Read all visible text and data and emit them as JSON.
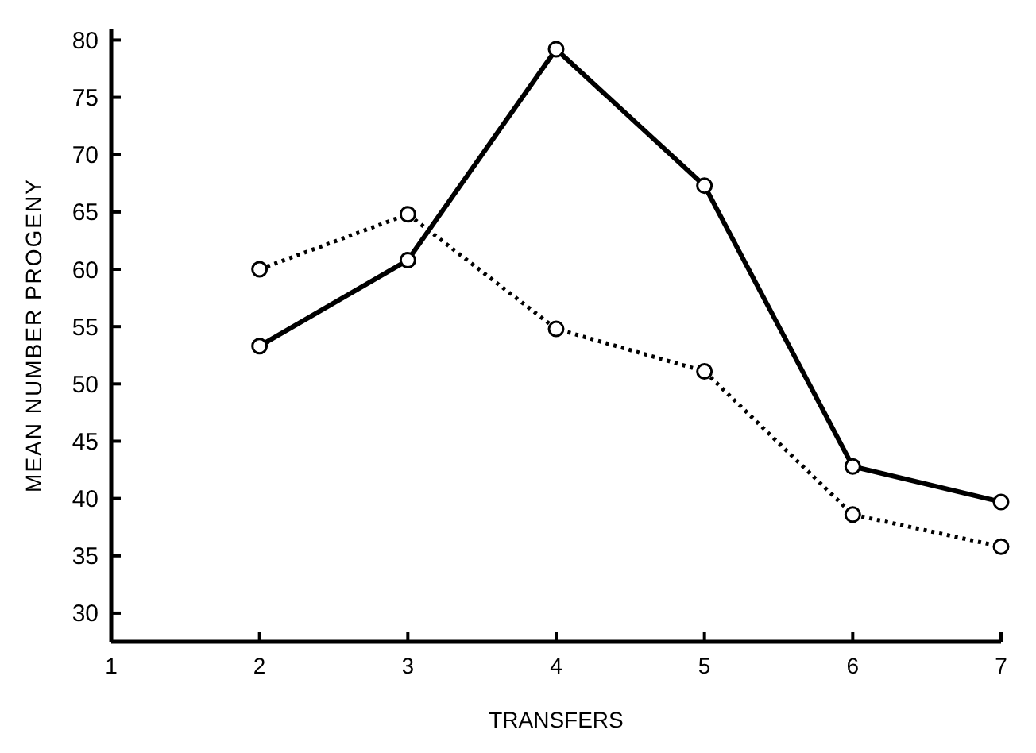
{
  "chart_data": {
    "type": "line",
    "xlabel": "TRANSFERS",
    "ylabel": "MEAN NUMBER PROGENY",
    "x": [
      2,
      3,
      4,
      5,
      6,
      7
    ],
    "series": [
      {
        "color": "#000000",
        "values": [
          53.3,
          60.8,
          79.2,
          67.3,
          42.8,
          39.7
        ],
        "line_style": "solid"
      },
      {
        "color": "#000000",
        "values": [
          60.0,
          64.8,
          54.8,
          51.1,
          38.6,
          35.8
        ],
        "line_style": "dotted"
      }
    ],
    "xlim": [
      1,
      7
    ],
    "xticks": [
      1,
      2,
      3,
      4,
      5,
      6,
      7
    ],
    "ylim": [
      27.5,
      81
    ],
    "yticks": [
      30,
      35,
      40,
      45,
      50,
      55,
      60,
      65,
      70,
      75,
      80
    ],
    "marker": "circle",
    "grid": false
  }
}
